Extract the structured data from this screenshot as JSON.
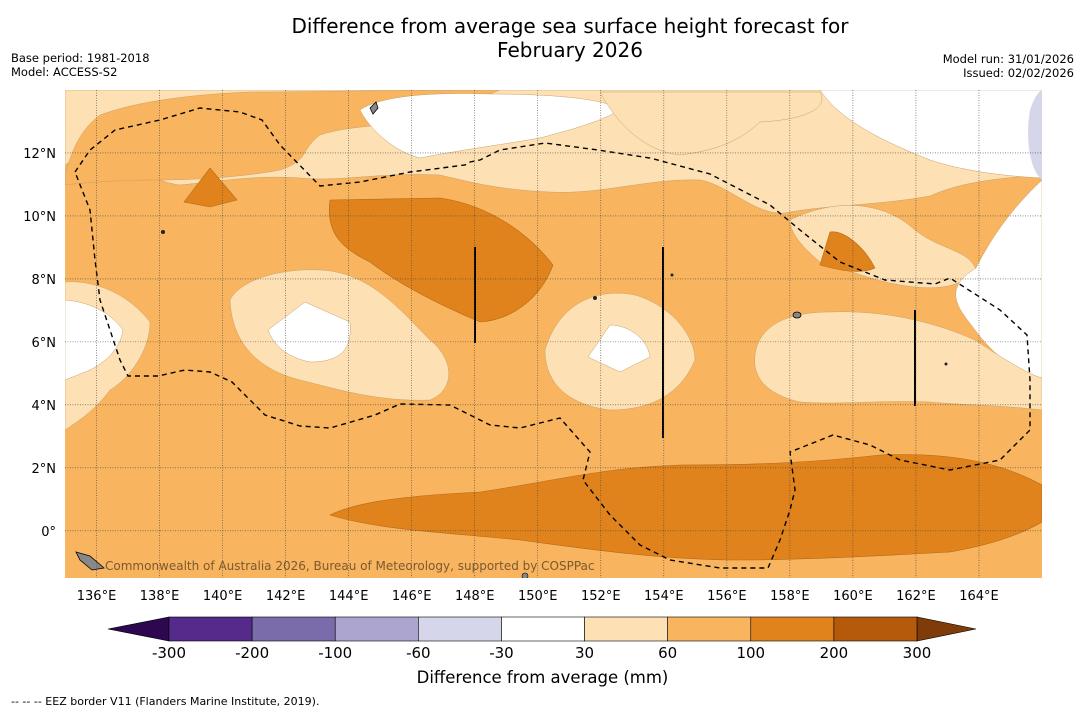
{
  "title": {
    "line1": "Difference from average sea surface height forecast for",
    "line2": "February 2026"
  },
  "info_left": {
    "base_period": "Base period: 1981-2018",
    "model": "Model: ACCESS-S2"
  },
  "info_right": {
    "model_run": "Model run: 31/01/2026",
    "issued": "Issued: 02/02/2026"
  },
  "map": {
    "lon_range": [
      135,
      166
    ],
    "lat_range": [
      -1.5,
      14
    ],
    "lon_ticks": [
      "136°E",
      "138°E",
      "140°E",
      "142°E",
      "144°E",
      "146°E",
      "148°E",
      "150°E",
      "152°E",
      "154°E",
      "156°E",
      "158°E",
      "160°E",
      "162°E",
      "164°E"
    ],
    "lat_ticks": [
      "12°N",
      "10°N",
      "8°N",
      "6°N",
      "4°N",
      "2°N",
      "0°"
    ],
    "watermark": "Commonwealth of Australia 2026, Bureau of Meteorology, supported by COSPPac"
  },
  "colorbar": {
    "tick_labels": [
      "-300",
      "-200",
      "-100",
      "-60",
      "-30",
      "30",
      "60",
      "100",
      "200",
      "300"
    ],
    "colors": [
      "#562a8b",
      "#7a6cab",
      "#aba5cf",
      "#d5d6ea",
      "#ffffff",
      "#fde1b4",
      "#f8b45e",
      "#e1831c",
      "#b55a0b"
    ],
    "underflow_color": "#2d0750",
    "overflow_color": "#7f3b08",
    "title": "Difference from average (mm)"
  },
  "palette": {
    "light": "#fde1b4",
    "medium": "#f8b45e",
    "dark": "#e1831c",
    "neg_light": "#d5d6ea"
  },
  "footnote": "--  --  -- EEZ border V11 (Flanders Marine Institute, 2019)."
}
